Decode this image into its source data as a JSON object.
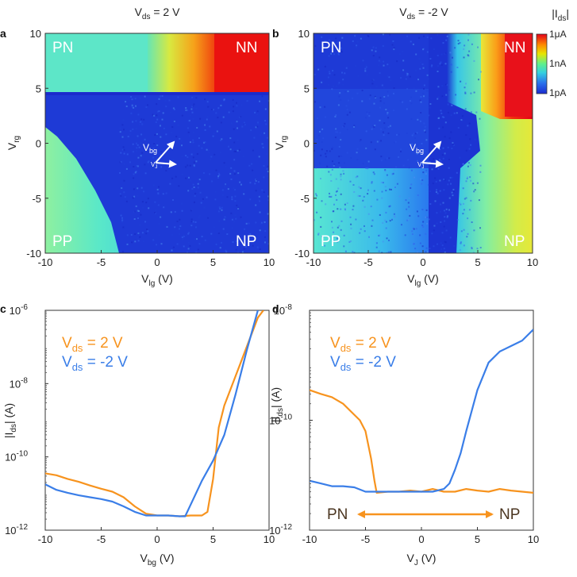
{
  "figure": {
    "panels": {
      "a": {
        "label": "a",
        "title_main": "V",
        "title_sub": "ds",
        "title_rest": " = 2 V"
      },
      "b": {
        "label": "b",
        "title_main": "V",
        "title_sub": "ds",
        "title_rest": " = -2 V"
      },
      "c": {
        "label": "c"
      },
      "d": {
        "label": "d"
      }
    },
    "corners": {
      "pn": "PN",
      "nn": "NN",
      "pp": "PP",
      "np": "NP"
    },
    "colorbar": {
      "title": "|I",
      "title_sub": "ds",
      "title_end": "|",
      "labels": [
        "1μA",
        "1nA",
        "1pA"
      ]
    },
    "maps": {
      "xlabel_main": "V",
      "xlabel_sub": "lg",
      "xlabel_end": " (V)",
      "ylabel_main": "V",
      "ylabel_sub": "rg",
      "arrow_label_main": "V",
      "arrow_label_sub": "bg",
      "arrow_label_2": "V",
      "arrow_label_2_sub": "J",
      "xticks": [
        "-10",
        "-5",
        "0",
        "5",
        "10"
      ],
      "yticks": [
        "10",
        "5",
        "0",
        "-5",
        "-10"
      ]
    },
    "plot_c": {
      "xlabel_main": "V",
      "xlabel_sub": "bg",
      "xlabel_end": " (V)",
      "ylabel_main": "|I",
      "ylabel_sub": "ds",
      "ylabel_end": "| (A)",
      "xticks": [
        "-10",
        "-5",
        "0",
        "5",
        "10"
      ],
      "ytick_base": "10",
      "ytick_exps": [
        "-6",
        "-8",
        "-10",
        "-12"
      ],
      "legend": [
        {
          "main": "V",
          "sub": "ds",
          "rest": " = 2 V",
          "color": "#f7931e"
        },
        {
          "main": "V",
          "sub": "ds",
          "rest": " = -2 V",
          "color": "#3a7ee8"
        }
      ]
    },
    "plot_d": {
      "xlabel_main": "V",
      "xlabel_sub": "J",
      "xlabel_end": " (V)",
      "ylabel_main": "|I",
      "ylabel_sub": "ds",
      "ylabel_end": "| (A)",
      "xticks": [
        "-10",
        "-5",
        "0",
        "5",
        "10"
      ],
      "ytick_base": "10",
      "ytick_exps": [
        "-8",
        "-10",
        "-12"
      ],
      "legend": [
        {
          "main": "V",
          "sub": "ds",
          "rest": " = 2 V",
          "color": "#f7931e"
        },
        {
          "main": "V",
          "sub": "ds",
          "rest": " = -2 V",
          "color": "#3a7ee8"
        }
      ],
      "arrow_left": "PN",
      "arrow_right": "NP"
    }
  },
  "chart_data": [
    {
      "type": "heatmap",
      "panel": "a",
      "title": "Vds = 2 V",
      "xlabel": "Vlg (V)",
      "ylabel": "Vrg (V)",
      "xlim": [
        -10,
        10
      ],
      "ylim": [
        -10,
        10
      ],
      "colorscale": "log |Ids|, 1pA (blue) to 1μA (red)",
      "regions": [
        "PN",
        "NN",
        "PP",
        "NP"
      ],
      "notes": "Low-current blue region for Vlg > -3 and Vrg < 4.6; high current (red) at Vlg > 6, Vrg > 5"
    },
    {
      "type": "heatmap",
      "panel": "b",
      "title": "Vds = -2 V",
      "xlabel": "Vlg (V)",
      "ylabel": "Vrg (V)",
      "xlim": [
        -10,
        10
      ],
      "ylim": [
        -10,
        10
      ],
      "colorscale": "log |Ids|, 1pA (blue) to 1μA (red)",
      "regions": [
        "PN",
        "NN",
        "PP",
        "NP"
      ],
      "notes": "Low-current blue region for Vlg < 3 (and Vrg > 4.6); high current (red) at Vlg > 7, Vrg > 3"
    },
    {
      "type": "line",
      "panel": "c",
      "xlabel": "Vbg (V)",
      "ylabel": "|Ids| (A)",
      "yscale": "log",
      "xlim": [
        -10,
        10
      ],
      "ylim_log10": [
        -12,
        -6
      ],
      "series": [
        {
          "name": "Vds = 2 V",
          "color": "#f7931e",
          "x": [
            -10,
            -9,
            -8,
            -7,
            -6,
            -5,
            -4,
            -3,
            -2,
            -1,
            0,
            1,
            2,
            3,
            3.5,
            4,
            4.5,
            5,
            5.5,
            6,
            7,
            8,
            9,
            9.5
          ],
          "log10_y": [
            -10.45,
            -10.5,
            -10.6,
            -10.68,
            -10.78,
            -10.87,
            -10.95,
            -11.1,
            -11.35,
            -11.55,
            -11.6,
            -11.6,
            -11.62,
            -11.6,
            -11.6,
            -11.6,
            -11.5,
            -10.6,
            -9.2,
            -8.6,
            -7.8,
            -7.0,
            -6.2,
            -6.0
          ]
        },
        {
          "name": "Vds = -2 V",
          "color": "#3a7ee8",
          "x": [
            -10,
            -9,
            -8,
            -7,
            -6,
            -5,
            -4,
            -3,
            -2,
            -1,
            0,
            1,
            2,
            2.5,
            3,
            4,
            5,
            6,
            7,
            8,
            9
          ],
          "log10_y": [
            -10.75,
            -10.9,
            -10.98,
            -11.05,
            -11.1,
            -11.15,
            -11.22,
            -11.35,
            -11.5,
            -11.6,
            -11.6,
            -11.6,
            -11.62,
            -11.62,
            -11.3,
            -10.65,
            -10.1,
            -9.4,
            -8.3,
            -7.1,
            -6.0
          ]
        }
      ]
    },
    {
      "type": "line",
      "panel": "d",
      "xlabel": "VJ (V)",
      "ylabel": "|Ids| (A)",
      "yscale": "log",
      "xlim": [
        -10,
        10
      ],
      "ylim_log10": [
        -12,
        -8
      ],
      "annotation": "PN <-> NP",
      "series": [
        {
          "name": "Vds = 2 V",
          "color": "#f7931e",
          "x": [
            -10,
            -9,
            -8,
            -7,
            -6,
            -5.5,
            -5,
            -4.5,
            -4.2,
            -4,
            -3,
            -2,
            -1,
            0,
            1,
            2,
            3,
            4,
            5,
            6,
            7,
            8,
            9,
            10
          ],
          "log10_y": [
            -9.45,
            -9.52,
            -9.58,
            -9.7,
            -9.9,
            -10.0,
            -10.2,
            -10.7,
            -11.1,
            -11.32,
            -11.3,
            -11.3,
            -11.28,
            -11.3,
            -11.25,
            -11.3,
            -11.3,
            -11.25,
            -11.28,
            -11.3,
            -11.25,
            -11.28,
            -11.3,
            -11.32
          ]
        },
        {
          "name": "Vds = -2 V",
          "color": "#3a7ee8",
          "x": [
            -10,
            -9,
            -8,
            -7,
            -6,
            -5,
            -4,
            -3,
            -2,
            -1,
            0,
            1,
            2,
            2.5,
            3,
            3.5,
            4,
            5,
            6,
            7,
            8,
            9,
            10
          ],
          "log10_y": [
            -11.1,
            -11.15,
            -11.2,
            -11.2,
            -11.22,
            -11.3,
            -11.3,
            -11.3,
            -11.3,
            -11.3,
            -11.3,
            -11.3,
            -11.25,
            -11.15,
            -10.9,
            -10.6,
            -10.2,
            -9.45,
            -8.95,
            -8.75,
            -8.65,
            -8.55,
            -8.35
          ]
        }
      ]
    }
  ]
}
